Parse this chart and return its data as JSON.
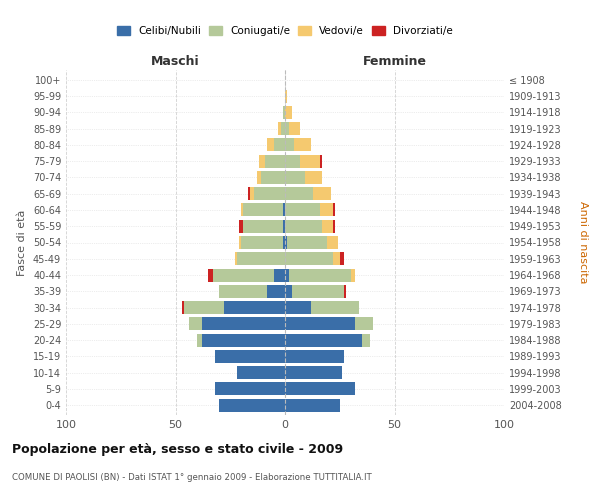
{
  "age_groups": [
    "0-4",
    "5-9",
    "10-14",
    "15-19",
    "20-24",
    "25-29",
    "30-34",
    "35-39",
    "40-44",
    "45-49",
    "50-54",
    "55-59",
    "60-64",
    "65-69",
    "70-74",
    "75-79",
    "80-84",
    "85-89",
    "90-94",
    "95-99",
    "100+"
  ],
  "birth_years": [
    "2004-2008",
    "1999-2003",
    "1994-1998",
    "1989-1993",
    "1984-1988",
    "1979-1983",
    "1974-1978",
    "1969-1973",
    "1964-1968",
    "1959-1963",
    "1954-1958",
    "1949-1953",
    "1944-1948",
    "1939-1943",
    "1934-1938",
    "1929-1933",
    "1924-1928",
    "1919-1923",
    "1914-1918",
    "1909-1913",
    "≤ 1908"
  ],
  "males": {
    "celibi": [
      30,
      32,
      22,
      32,
      38,
      38,
      28,
      8,
      5,
      0,
      1,
      1,
      1,
      0,
      0,
      0,
      0,
      0,
      0,
      0,
      0
    ],
    "coniugati": [
      0,
      0,
      0,
      0,
      2,
      6,
      18,
      22,
      28,
      22,
      19,
      18,
      18,
      14,
      11,
      9,
      5,
      2,
      1,
      0,
      0
    ],
    "vedovi": [
      0,
      0,
      0,
      0,
      0,
      0,
      0,
      0,
      0,
      1,
      1,
      0,
      1,
      2,
      2,
      3,
      3,
      1,
      0,
      0,
      0
    ],
    "divorziati": [
      0,
      0,
      0,
      0,
      0,
      0,
      1,
      0,
      2,
      0,
      0,
      2,
      0,
      1,
      0,
      0,
      0,
      0,
      0,
      0,
      0
    ]
  },
  "females": {
    "nubili": [
      25,
      32,
      26,
      27,
      35,
      32,
      12,
      3,
      2,
      0,
      1,
      0,
      0,
      0,
      0,
      0,
      0,
      0,
      0,
      0,
      0
    ],
    "coniugate": [
      0,
      0,
      0,
      0,
      4,
      8,
      22,
      24,
      28,
      22,
      18,
      17,
      16,
      13,
      9,
      7,
      4,
      2,
      0,
      0,
      0
    ],
    "vedove": [
      0,
      0,
      0,
      0,
      0,
      0,
      0,
      0,
      2,
      3,
      5,
      5,
      6,
      8,
      8,
      9,
      8,
      5,
      3,
      1,
      0
    ],
    "divorziate": [
      0,
      0,
      0,
      0,
      0,
      0,
      0,
      1,
      0,
      2,
      0,
      1,
      1,
      0,
      0,
      1,
      0,
      0,
      0,
      0,
      0
    ]
  },
  "colors": {
    "celibi": "#3a6ea8",
    "coniugati": "#b5c99a",
    "vedovi": "#f5c96f",
    "divorziati": "#cc2222"
  },
  "title": "Popolazione per età, sesso e stato civile - 2009",
  "subtitle": "COMUNE DI PAOLISI (BN) - Dati ISTAT 1° gennaio 2009 - Elaborazione TUTTITALIA.IT",
  "xlabel_left": "Maschi",
  "xlabel_right": "Femmine",
  "ylabel_left": "Fasce di età",
  "ylabel_right": "Anni di nascita",
  "legend_labels": [
    "Celibi/Nubili",
    "Coniugati/e",
    "Vedovi/e",
    "Divorziati/e"
  ],
  "bg_color": "#ffffff",
  "grid_color": "#cccccc"
}
